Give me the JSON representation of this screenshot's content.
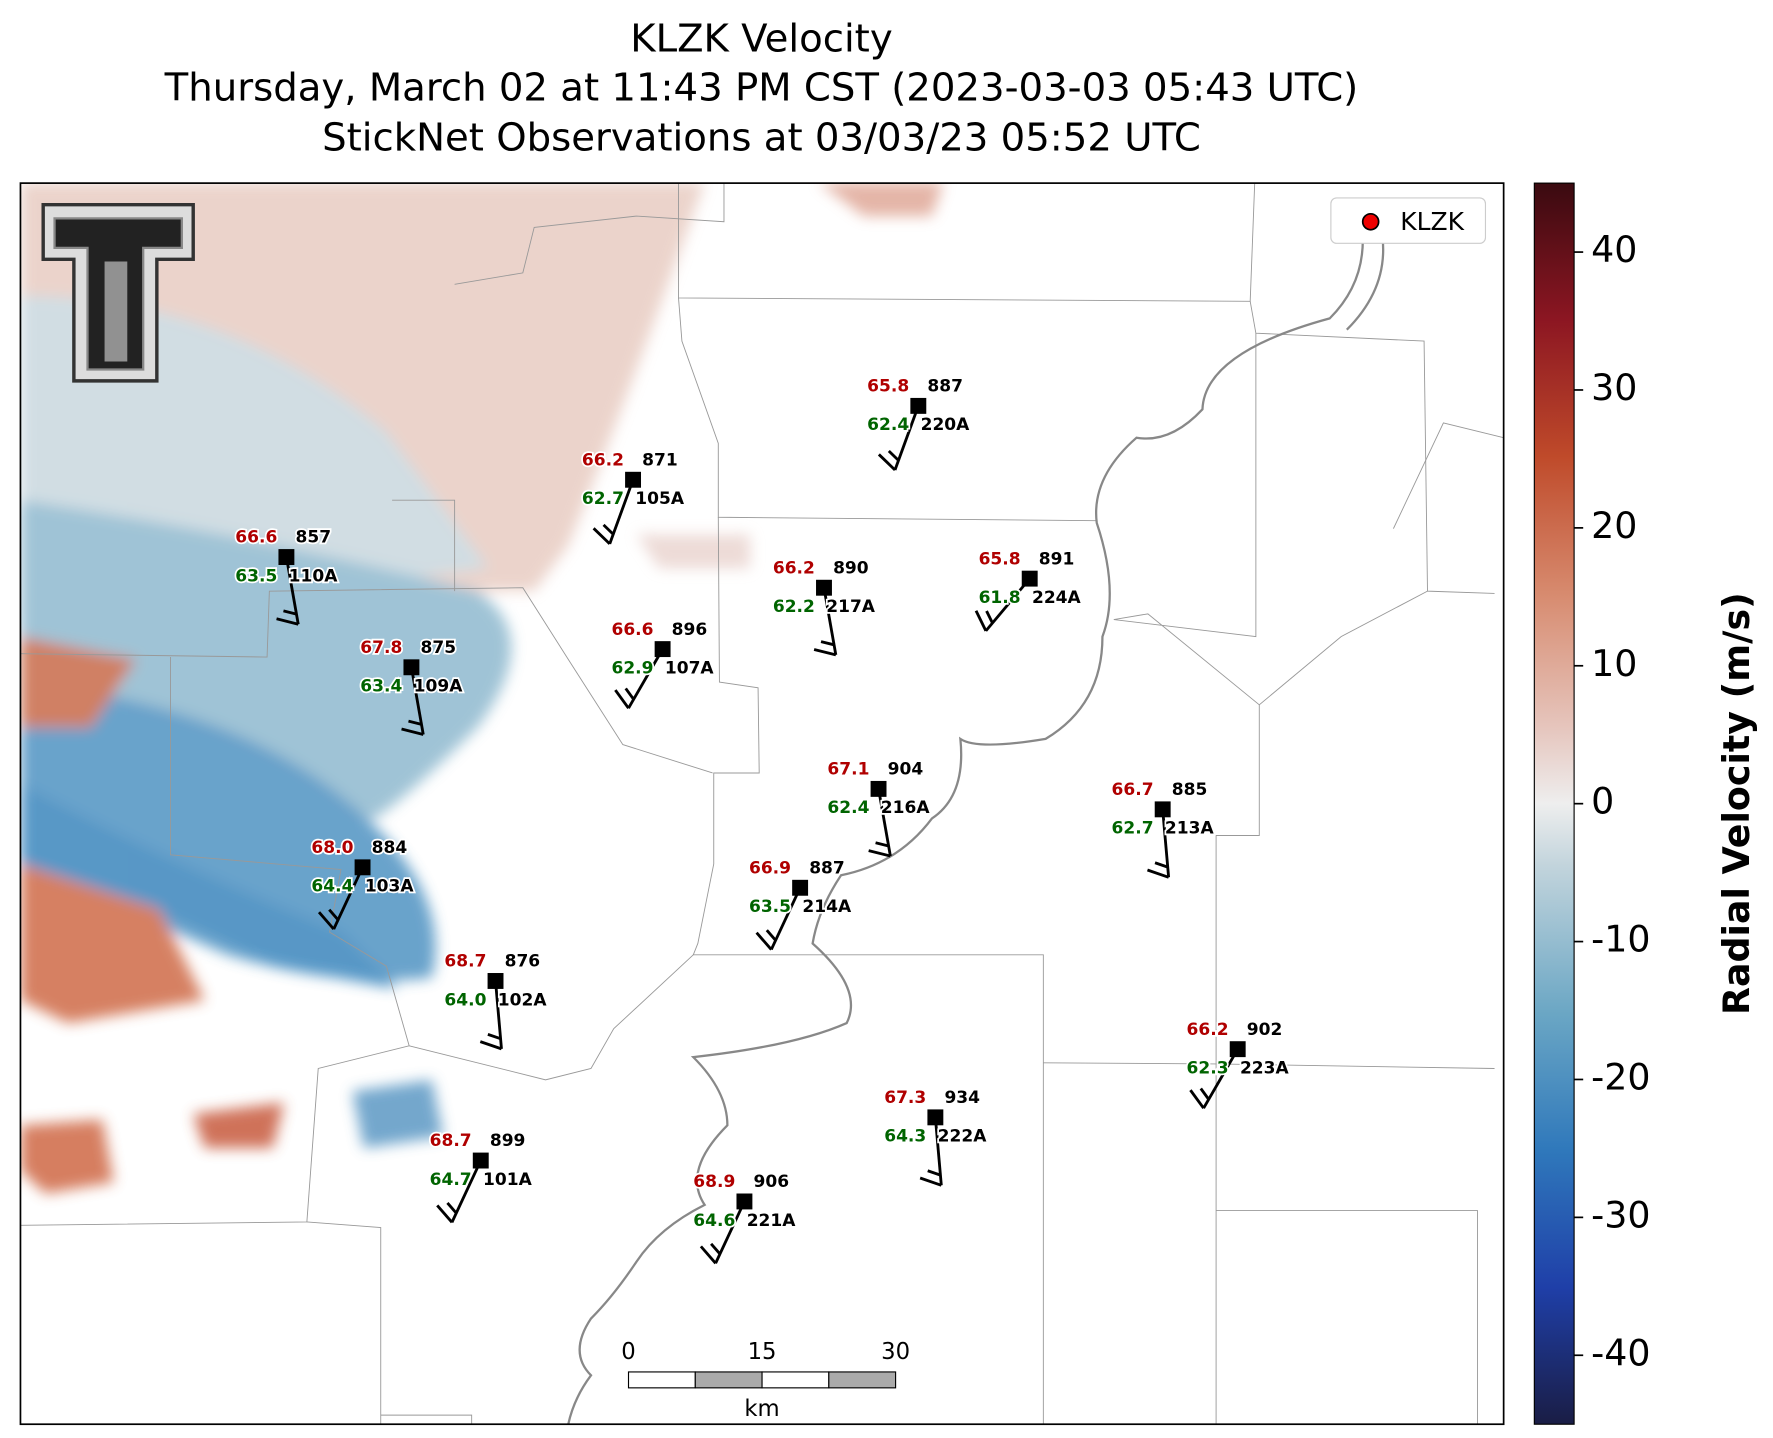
{
  "title": {
    "line1": "KLZK Velocity",
    "line2": "Thursday, March 02 at 11:43 PM CST (2023-03-03 05:43 UTC)",
    "line3": "StickNet Observations at 03/03/23 05:52 UTC"
  },
  "legend": {
    "label": "KLZK"
  },
  "colorbar": {
    "label": "Radial Velocity (m/s)",
    "lim": [
      -45,
      45
    ],
    "ticks": [
      -40,
      -30,
      -20,
      -10,
      0,
      10,
      20,
      30,
      40
    ]
  },
  "scale_bar": {
    "ticks": [
      0,
      15,
      30
    ],
    "unit": "km"
  },
  "stations": [
    {
      "temp": "66.6",
      "dew": "63.5",
      "pres": 857,
      "id": "110A"
    },
    {
      "temp": "66.2",
      "dew": "62.7",
      "pres": 871,
      "id": "105A"
    },
    {
      "temp": "65.8",
      "dew": "62.4",
      "pres": 887,
      "id": "220A"
    },
    {
      "temp": "66.2",
      "dew": "62.2",
      "pres": 890,
      "id": "217A"
    },
    {
      "temp": "65.8",
      "dew": "61.8",
      "pres": 891,
      "id": "224A"
    },
    {
      "temp": "66.6",
      "dew": "62.9",
      "pres": 896,
      "id": "107A"
    },
    {
      "temp": "67.8",
      "dew": "63.4",
      "pres": 875,
      "id": "109A"
    },
    {
      "temp": "67.1",
      "dew": "62.4",
      "pres": 904,
      "id": "216A"
    },
    {
      "temp": "66.7",
      "dew": "62.7",
      "pres": 885,
      "id": "213A"
    },
    {
      "temp": "68.0",
      "dew": "64.4",
      "pres": 884,
      "id": "103A"
    },
    {
      "temp": "66.9",
      "dew": "63.5",
      "pres": 887,
      "id": "214A"
    },
    {
      "temp": "68.7",
      "dew": "64.0",
      "pres": 876,
      "id": "102A"
    },
    {
      "temp": "66.2",
      "dew": "62.3",
      "pres": 902,
      "id": "223A"
    },
    {
      "temp": "67.3",
      "dew": "64.3",
      "pres": 934,
      "id": "222A"
    },
    {
      "temp": "68.7",
      "dew": "64.7",
      "pres": 899,
      "id": "101A"
    },
    {
      "temp": "68.9",
      "dew": "64.6",
      "pres": 906,
      "id": "221A"
    }
  ]
}
